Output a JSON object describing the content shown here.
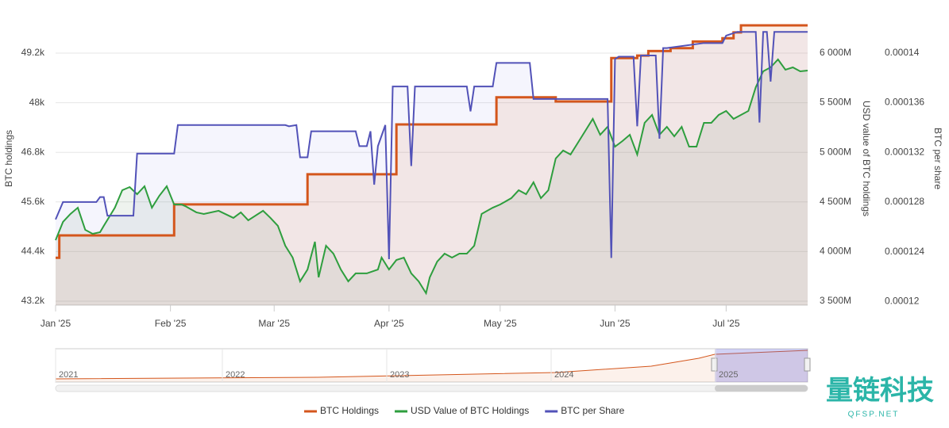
{
  "chart_data": {
    "type": "line",
    "ylabel": "BTC holdings",
    "y2label": "USD value of BTC holdings",
    "y3label": "BTC per share",
    "xlim": [
      0,
      203
    ],
    "xticks": [
      {
        "value": 0,
        "label": "Jan '25"
      },
      {
        "value": 31,
        "label": "Feb '25"
      },
      {
        "value": 59,
        "label": "Mar '25"
      },
      {
        "value": 90,
        "label": "Apr '25"
      },
      {
        "value": 120,
        "label": "May '25"
      },
      {
        "value": 151,
        "label": "Jun '25"
      },
      {
        "value": 181,
        "label": "Jul '25"
      }
    ],
    "ylim": [
      43104,
      50254
    ],
    "yticks": [
      {
        "value": 43200,
        "label": "43.2k"
      },
      {
        "value": 44400,
        "label": "44.4k"
      },
      {
        "value": 45600,
        "label": "45.6k"
      },
      {
        "value": 46800,
        "label": "46.8k"
      },
      {
        "value": 48000,
        "label": "48k"
      },
      {
        "value": 49200,
        "label": "49.2k"
      }
    ],
    "y2lim": [
      3460,
      6439
    ],
    "y2ticks": [
      {
        "value": 3500,
        "label": "3 500M"
      },
      {
        "value": 4000,
        "label": "4 000M"
      },
      {
        "value": 4500,
        "label": "4 500M"
      },
      {
        "value": 5000,
        "label": "5 000M"
      },
      {
        "value": 5500,
        "label": "5 500M"
      },
      {
        "value": 6000,
        "label": "6 000M"
      }
    ],
    "y3lim": [
      0.0001197,
      0.0001435
    ],
    "y3ticks": [
      0.00012,
      0.000124,
      0.000128,
      0.000132,
      0.000136,
      0.00014
    ],
    "grid": true,
    "series": [
      {
        "name": "BTC Holdings",
        "color": "#d4561c",
        "fill": "rgba(230,120,60,0.12)",
        "step": true,
        "x": [
          0,
          1,
          32,
          68,
          92,
          119,
          135,
          150,
          157,
          160,
          166,
          172,
          180,
          183,
          185,
          203
        ],
        "values": [
          44250,
          44790,
          45540,
          46270,
          47475,
          48130,
          48030,
          49080,
          49140,
          49250,
          49320,
          49480,
          49560,
          49700,
          49870,
          49870
        ]
      },
      {
        "name": "USD Value of BTC Holdings",
        "color": "#2e9e3e",
        "fill": "rgba(90,140,90,0.10)",
        "axis": "y2",
        "x": [
          0,
          2,
          4,
          6,
          8,
          10,
          12,
          13,
          16,
          18,
          20,
          22,
          24,
          26,
          28,
          30,
          32,
          34,
          35,
          38,
          40,
          44,
          48,
          50,
          52,
          56,
          58,
          60,
          62,
          64,
          66,
          68,
          70,
          71,
          73,
          75,
          77,
          79,
          81,
          84,
          87,
          88,
          90,
          92,
          94,
          96,
          98,
          100,
          101,
          103,
          105,
          107,
          109,
          111,
          113,
          115,
          118,
          120,
          123,
          125,
          127,
          129,
          131,
          133,
          135,
          137,
          139,
          141,
          143,
          145,
          147,
          149,
          151,
          153,
          155,
          157,
          159,
          161,
          163,
          165,
          167,
          169,
          171,
          173,
          175,
          177,
          179,
          181,
          183,
          185,
          187,
          189,
          191,
          193,
          195,
          197,
          199,
          201,
          203
        ],
        "values": [
          4115,
          4299,
          4379,
          4442,
          4219,
          4179,
          4195,
          4259,
          4442,
          4618,
          4650,
          4578,
          4658,
          4442,
          4562,
          4658,
          4474,
          4474,
          4458,
          4395,
          4379,
          4411,
          4339,
          4395,
          4315,
          4411,
          4339,
          4259,
          4059,
          3939,
          3700,
          3819,
          4099,
          3740,
          4059,
          3979,
          3819,
          3700,
          3780,
          3780,
          3819,
          3939,
          3819,
          3915,
          3939,
          3780,
          3700,
          3580,
          3740,
          3899,
          3979,
          3939,
          3979,
          3979,
          4059,
          4379,
          4442,
          4474,
          4538,
          4618,
          4578,
          4698,
          4538,
          4618,
          4938,
          5018,
          4978,
          5097,
          5217,
          5337,
          5177,
          5257,
          5057,
          5113,
          5177,
          4978,
          5297,
          5377,
          5177,
          5257,
          5161,
          5257,
          5057,
          5057,
          5297,
          5297,
          5377,
          5417,
          5337,
          5377,
          5417,
          5656,
          5816,
          5856,
          5936,
          5832,
          5856,
          5816,
          5824
        ]
      },
      {
        "name": "BTC per Share",
        "color": "#5252b8",
        "fill": "rgba(110,110,220,0.07)",
        "axis": "y3",
        "x": [
          0,
          2,
          11,
          12,
          13,
          14,
          21,
          22,
          32,
          33,
          62,
          63,
          65,
          66,
          68,
          69,
          81,
          82,
          84,
          85,
          86,
          87,
          89,
          90,
          91,
          95,
          96,
          97,
          111,
          112,
          113,
          118,
          119,
          128,
          129,
          149,
          150,
          151,
          152,
          156,
          157,
          158,
          162,
          163,
          164,
          165,
          175,
          180,
          181,
          184,
          189,
          190,
          191,
          192,
          193,
          194,
          203
        ],
        "values": [
          0.0001266,
          0.000128,
          0.000128,
          0.0001284,
          0.0001284,
          0.0001269,
          0.0001269,
          0.0001319,
          0.0001319,
          0.0001342,
          0.0001342,
          0.0001341,
          0.0001342,
          0.0001316,
          0.0001316,
          0.0001337,
          0.0001337,
          0.0001325,
          0.0001325,
          0.0001337,
          0.0001294,
          0.0001325,
          0.0001342,
          0.0001234,
          0.0001373,
          0.0001373,
          0.0001309,
          0.0001373,
          0.0001373,
          0.0001353,
          0.0001373,
          0.0001373,
          0.0001392,
          0.0001392,
          0.0001363,
          0.0001363,
          0.0001235,
          0.0001395,
          0.0001397,
          0.0001397,
          0.0001341,
          0.0001398,
          0.0001398,
          0.0001331,
          0.0001404,
          0.0001404,
          0.0001408,
          0.0001408,
          0.0001414,
          0.0001417,
          0.0001417,
          0.0001344,
          0.0001417,
          0.0001417,
          0.0001377,
          0.0001417,
          0.0001417
        ]
      }
    ],
    "navigator": {
      "labels": [
        "2021",
        "2022",
        "2023",
        "2024",
        "2025"
      ]
    }
  },
  "watermark": {
    "title": "量链科技",
    "url": "QFSP.NET"
  }
}
